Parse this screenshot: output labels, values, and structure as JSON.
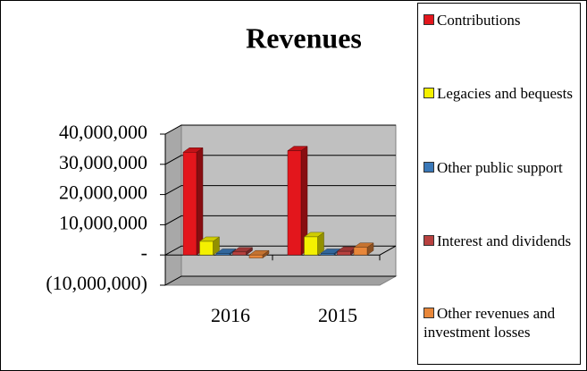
{
  "chart_data": {
    "type": "bar3d",
    "title": "Revenues",
    "categories": [
      "2016",
      "2015"
    ],
    "series": [
      {
        "name": "Contributions",
        "color": "#e3161c",
        "values": [
          34000000,
          34500000
        ]
      },
      {
        "name": "Legacies and bequests",
        "color": "#f4f000",
        "values": [
          4500000,
          6000000
        ]
      },
      {
        "name": "Other public support",
        "color": "#3a78b8",
        "values": [
          500000,
          500000
        ]
      },
      {
        "name": "Interest and dividends",
        "color": "#b8413f",
        "values": [
          1000000,
          1200000
        ]
      },
      {
        "name": "Other revenues and investment losses",
        "color": "#e8873a",
        "values": [
          -1000000,
          2500000
        ]
      }
    ],
    "ylim": [
      -10000000,
      40000000
    ],
    "yticks": [
      {
        "value": -10000000,
        "label": "(10,000,000)"
      },
      {
        "value": 0,
        "label": "-"
      },
      {
        "value": 10000000,
        "label": "10,000,000"
      },
      {
        "value": 20000000,
        "label": "20,000,000"
      },
      {
        "value": 30000000,
        "label": "30,000,000"
      },
      {
        "value": 40000000,
        "label": "40,000,000"
      }
    ],
    "grid": true,
    "legend": "right"
  }
}
